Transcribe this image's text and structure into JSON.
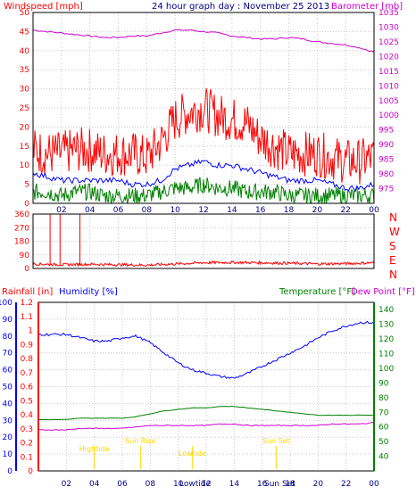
{
  "header": {
    "wind_label": "Windspeed [mph]",
    "date_title": "24 hour graph day : November 25 2013",
    "baro_label": "Barometer [mb]"
  },
  "labels": {
    "rain": "Rainfall [in]",
    "humidity": "Humidity [%]",
    "temperature": "Temperature [°F]",
    "dewpoint": "Dew Point [°F]",
    "compass": [
      "N",
      "W",
      "S",
      "E",
      "N"
    ],
    "events": {
      "high_tide": "Hightide",
      "sun_rise": "Sun Rise",
      "low_tide": "Lowtide",
      "sun_set": "Sun Set",
      "low_tide_bottom": "Lowtide",
      "sun_set_bottom": "Sun Set"
    }
  },
  "colors": {
    "wind": "#ff0000",
    "wind_avg": "#0000ff",
    "wind_low": "#008000",
    "barometer": "#cc00cc",
    "direction": "#ff0000",
    "rain": "#ff0000",
    "humidity": "#0000ff",
    "temperature": "#008000",
    "dewpoint": "#cc00cc",
    "events": "#ffd700",
    "grid": "#c8c8c8",
    "frame": "#000000"
  },
  "chart_data": [
    {
      "id": "wind_barometer",
      "type": "line",
      "x_ticks": [
        "02",
        "04",
        "06",
        "08",
        "10",
        "12",
        "14",
        "16",
        "18",
        "20",
        "22",
        "00"
      ],
      "left_axis": {
        "label": "Windspeed [mph]",
        "ylim": [
          0,
          50
        ],
        "ticks": [
          0,
          5,
          10,
          15,
          20,
          25,
          30,
          35,
          40,
          45,
          50
        ]
      },
      "right_axis": {
        "label": "Barometer [mb]",
        "ylim": [
          970,
          1035
        ],
        "ticks": [
          975,
          980,
          985,
          990,
          995,
          1000,
          1005,
          1010,
          1015,
          1020,
          1025,
          1030,
          1035
        ]
      },
      "series": [
        {
          "key": "gust",
          "axis": "left",
          "x": [
            0,
            1,
            2,
            3,
            4,
            5,
            6,
            7,
            8,
            9,
            10,
            11,
            12,
            13,
            14,
            15,
            16,
            17,
            18,
            19,
            20,
            21,
            22,
            23,
            24
          ],
          "values": [
            14,
            13,
            13,
            14,
            14,
            13,
            13,
            13,
            12,
            16,
            22,
            24,
            25,
            23,
            22,
            21,
            17,
            15,
            13,
            13,
            13,
            12,
            11,
            11,
            12
          ]
        },
        {
          "key": "average",
          "axis": "left",
          "x": [
            0,
            1,
            2,
            3,
            4,
            5,
            6,
            7,
            8,
            9,
            10,
            11,
            12,
            13,
            14,
            15,
            16,
            17,
            18,
            19,
            20,
            21,
            22,
            23,
            24
          ],
          "values": [
            8,
            7,
            6,
            6,
            6,
            6,
            6,
            5,
            5,
            6,
            9,
            10,
            11,
            10,
            10,
            9,
            8,
            7,
            6,
            6,
            6,
            5,
            4,
            4,
            5
          ]
        },
        {
          "key": "lull",
          "axis": "left",
          "x": [
            0,
            1,
            2,
            3,
            4,
            5,
            6,
            7,
            8,
            9,
            10,
            11,
            12,
            13,
            14,
            15,
            16,
            17,
            18,
            19,
            20,
            21,
            22,
            23,
            24
          ],
          "values": [
            3,
            3,
            2,
            3,
            3,
            2,
            2,
            2,
            2,
            3,
            4,
            4,
            5,
            4,
            4,
            3,
            3,
            3,
            2,
            2,
            2,
            2,
            2,
            2,
            2
          ]
        },
        {
          "key": "barometer",
          "axis": "right",
          "x": [
            0,
            1,
            2,
            3,
            4,
            5,
            6,
            7,
            8,
            9,
            10,
            11,
            12,
            13,
            14,
            15,
            16,
            17,
            18,
            19,
            20,
            21,
            22,
            23,
            24
          ],
          "values": [
            1029,
            1028.5,
            1028,
            1027.5,
            1027,
            1026.5,
            1026.5,
            1027,
            1027,
            1028,
            1029,
            1029,
            1028.5,
            1028,
            1027,
            1026.5,
            1026,
            1026,
            1026.5,
            1026,
            1025,
            1024.5,
            1024,
            1023,
            1021.5
          ]
        }
      ]
    },
    {
      "id": "wind_direction",
      "type": "scatter",
      "x_ticks": [],
      "left_axis": {
        "ylim": [
          0,
          360
        ],
        "ticks": [
          0,
          90,
          180,
          270,
          360
        ]
      },
      "right_axis": {
        "ticks": [
          "N",
          "W",
          "S",
          "E",
          "N"
        ]
      },
      "series": [
        {
          "key": "direction",
          "x": [
            0,
            2,
            4,
            6,
            8,
            10,
            12,
            14,
            16,
            18,
            20,
            22,
            24
          ],
          "values": [
            30,
            25,
            28,
            25,
            22,
            30,
            38,
            40,
            38,
            35,
            30,
            32,
            38
          ]
        }
      ]
    },
    {
      "id": "rain_humidity_temp",
      "type": "line",
      "x_ticks": [
        "02",
        "04",
        "06",
        "08",
        "10",
        "12",
        "14",
        "16",
        "18",
        "20",
        "22",
        "00"
      ],
      "humidity_axis": {
        "label": "Humidity [%]",
        "ylim": [
          0,
          100
        ],
        "ticks": [
          0,
          10,
          20,
          30,
          40,
          50,
          60,
          70,
          80,
          90,
          100
        ]
      },
      "rain_axis": {
        "label": "Rainfall [in]",
        "ylim": [
          0,
          1.2
        ],
        "ticks": [
          0,
          0.1,
          0.2,
          0.3,
          0.4,
          0.5,
          0.6,
          0.7,
          0.8,
          0.9,
          1,
          1.1,
          1.2
        ]
      },
      "temperature_axis": {
        "label": "Temperature [°F]",
        "ylim": [
          30,
          145
        ],
        "ticks": [
          40,
          50,
          60,
          70,
          80,
          90,
          100,
          110,
          120,
          130,
          140
        ]
      },
      "series": [
        {
          "key": "humidity",
          "axis": "humidity",
          "x": [
            0,
            1,
            2,
            3,
            4,
            5,
            6,
            7,
            8,
            9,
            10,
            11,
            12,
            13,
            14,
            15,
            16,
            17,
            18,
            19,
            20,
            21,
            22,
            23,
            24
          ],
          "values": [
            81,
            81,
            81,
            79,
            77,
            77,
            79,
            80,
            76,
            70,
            64,
            60,
            58,
            56,
            55,
            58,
            62,
            66,
            70,
            74,
            79,
            83,
            86,
            88,
            88
          ]
        },
        {
          "key": "temperature",
          "axis": "temperature",
          "x": [
            0,
            1,
            2,
            3,
            4,
            5,
            6,
            7,
            8,
            9,
            10,
            11,
            12,
            13,
            14,
            15,
            16,
            17,
            18,
            19,
            20,
            21,
            22,
            23,
            24
          ],
          "values": [
            65,
            65,
            65,
            66,
            66,
            66,
            66,
            67,
            69,
            71,
            72,
            73,
            73,
            74,
            74,
            73,
            72,
            71,
            70,
            69,
            68,
            68,
            68,
            68,
            68
          ]
        },
        {
          "key": "dewpoint",
          "axis": "temperature",
          "x": [
            0,
            1,
            2,
            3,
            4,
            5,
            6,
            7,
            8,
            9,
            10,
            11,
            12,
            13,
            14,
            15,
            16,
            17,
            18,
            19,
            20,
            21,
            22,
            23,
            24
          ],
          "values": [
            58,
            58,
            58,
            59,
            59,
            59,
            59,
            60,
            61,
            61,
            61,
            61,
            61,
            62,
            62,
            61,
            61,
            61,
            61,
            61,
            61,
            62,
            62,
            62,
            63
          ]
        },
        {
          "key": "rain",
          "axis": "rain",
          "x": [
            0,
            24
          ],
          "values": [
            0,
            0
          ]
        }
      ],
      "events": [
        {
          "key": "high_tide",
          "time": 4.0
        },
        {
          "key": "sun_rise",
          "time": 7.3
        },
        {
          "key": "low_tide",
          "time": 11.0
        },
        {
          "key": "sun_set",
          "time": 17.0
        }
      ]
    }
  ]
}
